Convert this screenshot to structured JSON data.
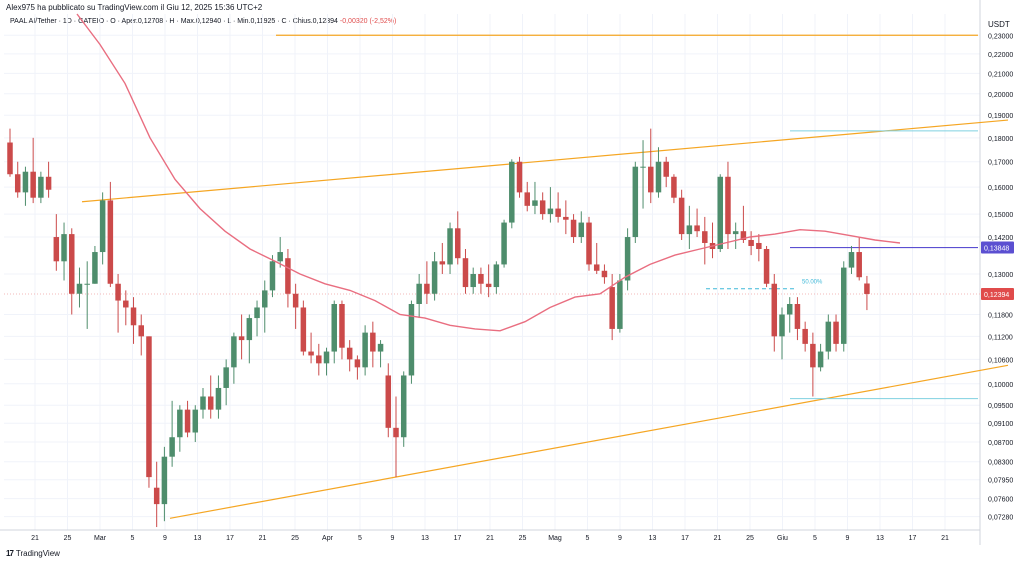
{
  "header": {
    "published_by": "Alex975 ha pubblicato su TradingView.com il Giu 12, 2025 15:36 UTC+2"
  },
  "legend": {
    "symbol": "PAAL AI/Tether · 1D · GATEIO",
    "open": "O · Aper.0,12708",
    "high": "H · Max.0,12940",
    "low": "L · Min.0,11925",
    "close": "C · Chius.0,12394",
    "change": "-0,00320 (-2,52%)"
  },
  "currency": "USDT",
  "footer": {
    "brand": "TradingView",
    "logo_glyph": "17"
  },
  "colors": {
    "up": "#4e8d6c",
    "down": "#cb4a4a",
    "ma": "#e96e80",
    "trend": "#f5a623",
    "purple": "#5b4fd1",
    "cyan": "#7fd1e0",
    "dash": "#3fb8d8",
    "grid": "#f0f3fa"
  },
  "chart_data": {
    "type": "candlestick",
    "y_scale": "log",
    "ylim": [
      0.0705,
      0.242
    ],
    "price_ticks": [
      "0,23000",
      "0,22000",
      "0,21000",
      "0,20000",
      "0,19000",
      "0,18000",
      "0,17000",
      "0,16000",
      "0,15000",
      "0,14200",
      "0,13000",
      "0,11800",
      "0,11200",
      "0,10600",
      "0,10000",
      "0,09500",
      "0,09100",
      "0,08700",
      "0,08300",
      "0,07950",
      "0,07600",
      "0,07280"
    ],
    "x_ticks": [
      "21",
      "25",
      "Mar",
      "5",
      "9",
      "13",
      "17",
      "21",
      "25",
      "Apr",
      "5",
      "9",
      "13",
      "17",
      "21",
      "25",
      "Mag",
      "5",
      "9",
      "13",
      "17",
      "21",
      "25",
      "Giu",
      "5",
      "9",
      "13",
      "17",
      "21"
    ],
    "price_labels": [
      {
        "text": "0,13848",
        "price": 0.13848,
        "color": "#5b4fd1"
      },
      {
        "text": "0,12394",
        "price": 0.12394,
        "color": "#e04b4b"
      }
    ],
    "annotation": "50.00%",
    "candles": [
      [
        0.178,
        0.184,
        0.164,
        0.165
      ],
      [
        0.165,
        0.17,
        0.156,
        0.158
      ],
      [
        0.158,
        0.168,
        0.153,
        0.166
      ],
      [
        0.166,
        0.18,
        0.154,
        0.156
      ],
      [
        0.156,
        0.166,
        0.154,
        0.164
      ],
      [
        0.164,
        0.17,
        0.156,
        0.159
      ],
      [
        0.142,
        0.15,
        0.131,
        0.134
      ],
      [
        0.134,
        0.147,
        0.128,
        0.143
      ],
      [
        0.143,
        0.145,
        0.118,
        0.124
      ],
      [
        0.124,
        0.132,
        0.12,
        0.127
      ],
      [
        0.127,
        0.134,
        0.114,
        0.127
      ],
      [
        0.127,
        0.139,
        0.127,
        0.137
      ],
      [
        0.137,
        0.158,
        0.133,
        0.155
      ],
      [
        0.155,
        0.162,
        0.126,
        0.127
      ],
      [
        0.127,
        0.13,
        0.113,
        0.122
      ],
      [
        0.122,
        0.125,
        0.115,
        0.12
      ],
      [
        0.12,
        0.123,
        0.11,
        0.115
      ],
      [
        0.115,
        0.118,
        0.107,
        0.112
      ],
      [
        0.112,
        0.112,
        0.078,
        0.08
      ],
      [
        0.078,
        0.083,
        0.071,
        0.075
      ],
      [
        0.075,
        0.086,
        0.072,
        0.084
      ],
      [
        0.084,
        0.096,
        0.082,
        0.088
      ],
      [
        0.088,
        0.095,
        0.085,
        0.094
      ],
      [
        0.094,
        0.096,
        0.088,
        0.089
      ],
      [
        0.089,
        0.095,
        0.087,
        0.094
      ],
      [
        0.094,
        0.099,
        0.092,
        0.097
      ],
      [
        0.097,
        0.102,
        0.092,
        0.094
      ],
      [
        0.094,
        0.102,
        0.092,
        0.099
      ],
      [
        0.099,
        0.106,
        0.095,
        0.104
      ],
      [
        0.104,
        0.113,
        0.1,
        0.112
      ],
      [
        0.112,
        0.118,
        0.106,
        0.111
      ],
      [
        0.111,
        0.118,
        0.105,
        0.117
      ],
      [
        0.117,
        0.122,
        0.112,
        0.12
      ],
      [
        0.12,
        0.128,
        0.113,
        0.125
      ],
      [
        0.125,
        0.136,
        0.123,
        0.134
      ],
      [
        0.134,
        0.142,
        0.132,
        0.137
      ],
      [
        0.135,
        0.138,
        0.12,
        0.124
      ],
      [
        0.124,
        0.127,
        0.114,
        0.12
      ],
      [
        0.12,
        0.122,
        0.107,
        0.108
      ],
      [
        0.108,
        0.113,
        0.105,
        0.107
      ],
      [
        0.107,
        0.11,
        0.102,
        0.105
      ],
      [
        0.105,
        0.109,
        0.102,
        0.108
      ],
      [
        0.108,
        0.122,
        0.105,
        0.121
      ],
      [
        0.121,
        0.122,
        0.106,
        0.109
      ],
      [
        0.109,
        0.111,
        0.103,
        0.106
      ],
      [
        0.106,
        0.107,
        0.101,
        0.104
      ],
      [
        0.104,
        0.115,
        0.102,
        0.113
      ],
      [
        0.113,
        0.116,
        0.104,
        0.108
      ],
      [
        0.108,
        0.111,
        0.104,
        0.11
      ],
      [
        0.102,
        0.105,
        0.088,
        0.09
      ],
      [
        0.09,
        0.097,
        0.08,
        0.088
      ],
      [
        0.088,
        0.103,
        0.086,
        0.102
      ],
      [
        0.102,
        0.122,
        0.1,
        0.121
      ],
      [
        0.121,
        0.13,
        0.117,
        0.127
      ],
      [
        0.127,
        0.134,
        0.121,
        0.124
      ],
      [
        0.124,
        0.137,
        0.122,
        0.134
      ],
      [
        0.134,
        0.14,
        0.13,
        0.133
      ],
      [
        0.133,
        0.147,
        0.13,
        0.145
      ],
      [
        0.145,
        0.151,
        0.133,
        0.135
      ],
      [
        0.135,
        0.138,
        0.124,
        0.126
      ],
      [
        0.126,
        0.132,
        0.124,
        0.13
      ],
      [
        0.13,
        0.132,
        0.124,
        0.127
      ],
      [
        0.127,
        0.133,
        0.123,
        0.126
      ],
      [
        0.126,
        0.134,
        0.124,
        0.133
      ],
      [
        0.133,
        0.148,
        0.132,
        0.147
      ],
      [
        0.147,
        0.171,
        0.145,
        0.17
      ],
      [
        0.17,
        0.172,
        0.156,
        0.158
      ],
      [
        0.158,
        0.162,
        0.151,
        0.153
      ],
      [
        0.153,
        0.162,
        0.15,
        0.155
      ],
      [
        0.155,
        0.158,
        0.148,
        0.15
      ],
      [
        0.15,
        0.16,
        0.147,
        0.152
      ],
      [
        0.152,
        0.158,
        0.147,
        0.149
      ],
      [
        0.149,
        0.155,
        0.143,
        0.148
      ],
      [
        0.148,
        0.15,
        0.14,
        0.142
      ],
      [
        0.142,
        0.151,
        0.14,
        0.147
      ],
      [
        0.147,
        0.149,
        0.131,
        0.133
      ],
      [
        0.133,
        0.14,
        0.13,
        0.131
      ],
      [
        0.131,
        0.133,
        0.127,
        0.129
      ],
      [
        0.126,
        0.13,
        0.111,
        0.114
      ],
      [
        0.114,
        0.13,
        0.113,
        0.128
      ],
      [
        0.128,
        0.145,
        0.125,
        0.142
      ],
      [
        0.142,
        0.17,
        0.14,
        0.168
      ],
      [
        0.168,
        0.179,
        0.152,
        0.168
      ],
      [
        0.168,
        0.184,
        0.154,
        0.158
      ],
      [
        0.158,
        0.176,
        0.156,
        0.17
      ],
      [
        0.17,
        0.172,
        0.16,
        0.164
      ],
      [
        0.164,
        0.165,
        0.154,
        0.156
      ],
      [
        0.156,
        0.159,
        0.141,
        0.143
      ],
      [
        0.143,
        0.153,
        0.138,
        0.146
      ],
      [
        0.146,
        0.152,
        0.142,
        0.144
      ],
      [
        0.144,
        0.149,
        0.133,
        0.14
      ],
      [
        0.14,
        0.147,
        0.135,
        0.138
      ],
      [
        0.138,
        0.165,
        0.137,
        0.164
      ],
      [
        0.164,
        0.17,
        0.138,
        0.143
      ],
      [
        0.143,
        0.147,
        0.138,
        0.144
      ],
      [
        0.144,
        0.153,
        0.14,
        0.141
      ],
      [
        0.141,
        0.144,
        0.136,
        0.139
      ],
      [
        0.14,
        0.143,
        0.134,
        0.138
      ],
      [
        0.138,
        0.139,
        0.126,
        0.127
      ],
      [
        0.127,
        0.13,
        0.108,
        0.112
      ],
      [
        0.112,
        0.12,
        0.106,
        0.118
      ],
      [
        0.118,
        0.123,
        0.113,
        0.121
      ],
      [
        0.121,
        0.123,
        0.111,
        0.114
      ],
      [
        0.114,
        0.116,
        0.108,
        0.11
      ],
      [
        0.11,
        0.113,
        0.097,
        0.104
      ],
      [
        0.104,
        0.11,
        0.103,
        0.108
      ],
      [
        0.108,
        0.118,
        0.106,
        0.116
      ],
      [
        0.116,
        0.118,
        0.108,
        0.11
      ],
      [
        0.11,
        0.134,
        0.108,
        0.132
      ],
      [
        0.132,
        0.139,
        0.13,
        0.137
      ],
      [
        0.137,
        0.142,
        0.128,
        0.129
      ],
      [
        0.12708,
        0.1294,
        0.11925,
        0.12394
      ]
    ],
    "moving_average": [
      [
        77,
        0.242
      ],
      [
        100,
        0.225
      ],
      [
        125,
        0.205
      ],
      [
        150,
        0.18
      ],
      [
        175,
        0.163
      ],
      [
        200,
        0.152
      ],
      [
        225,
        0.144
      ],
      [
        250,
        0.138
      ],
      [
        275,
        0.134
      ],
      [
        300,
        0.13
      ],
      [
        325,
        0.127
      ],
      [
        350,
        0.125
      ],
      [
        375,
        0.122
      ],
      [
        400,
        0.118
      ],
      [
        425,
        0.117
      ],
      [
        450,
        0.115
      ],
      [
        475,
        0.114
      ],
      [
        500,
        0.1135
      ],
      [
        525,
        0.116
      ],
      [
        550,
        0.12
      ],
      [
        575,
        0.123
      ],
      [
        600,
        0.124
      ],
      [
        625,
        0.129
      ],
      [
        650,
        0.133
      ],
      [
        675,
        0.136
      ],
      [
        700,
        0.138
      ],
      [
        725,
        0.14
      ],
      [
        750,
        0.142
      ],
      [
        775,
        0.143
      ],
      [
        800,
        0.1445
      ],
      [
        825,
        0.144
      ],
      [
        850,
        0.1425
      ],
      [
        875,
        0.141
      ],
      [
        900,
        0.14
      ]
    ]
  }
}
